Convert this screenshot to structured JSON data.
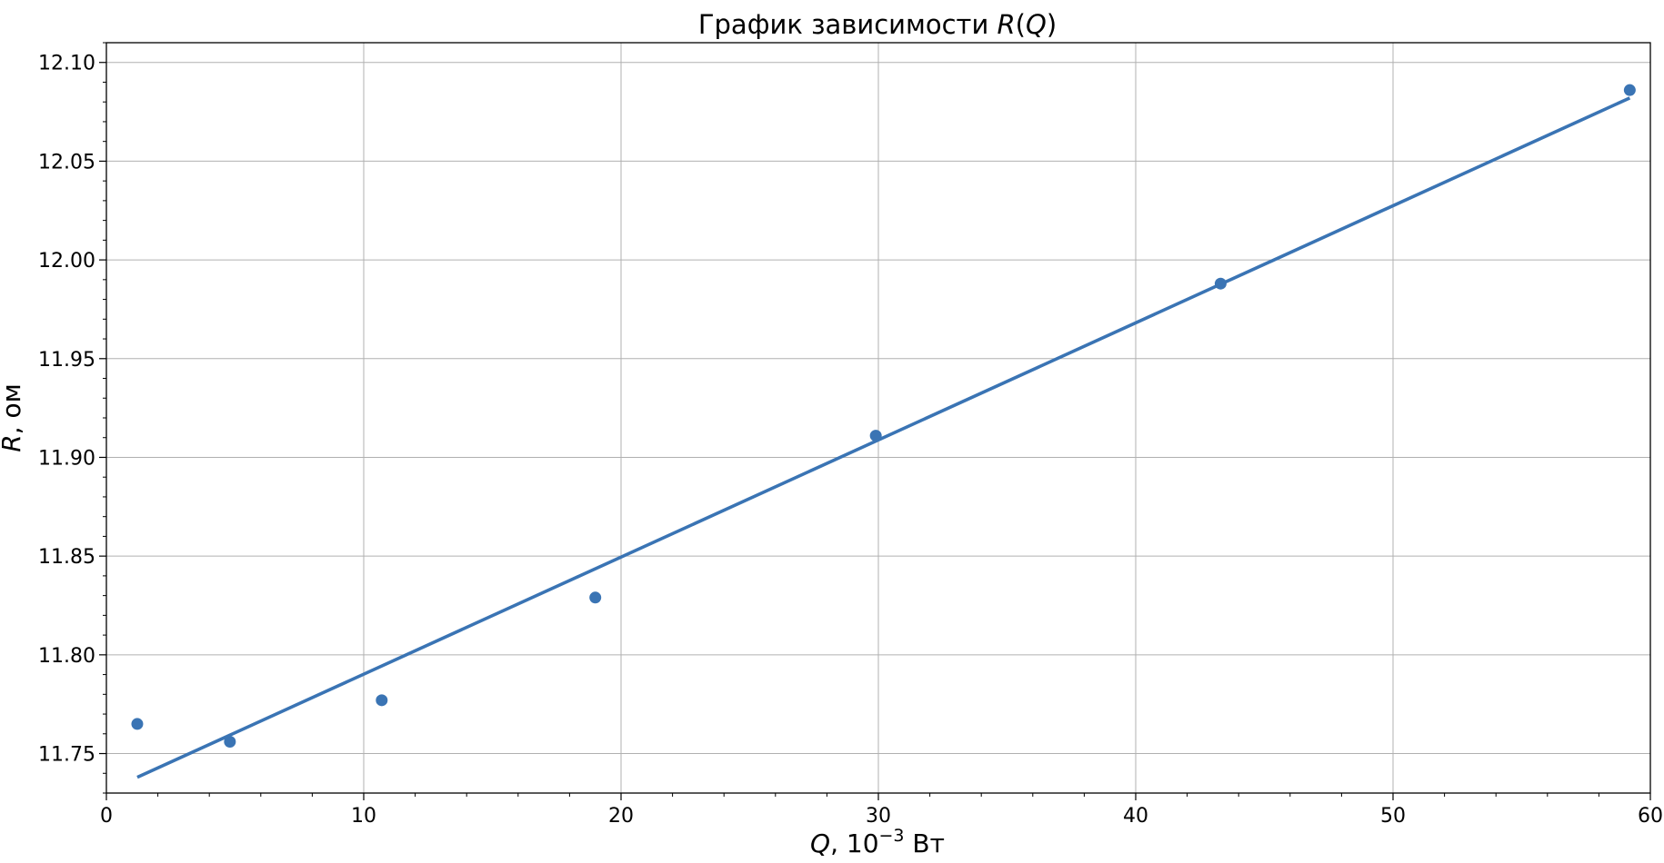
{
  "chart_data": {
    "type": "scatter",
    "title": {
      "prefix": "График зависимости ",
      "symbol": "R",
      "open": "(",
      "arg": "Q",
      "close": ")"
    },
    "xlabel": {
      "symbol": "Q",
      "text_before_exp": ", 10",
      "exponent": "−3",
      "unit": " Вт"
    },
    "ylabel": {
      "symbol": "R",
      "text": ", ом"
    },
    "xlim": [
      0,
      60
    ],
    "ylim": [
      11.73,
      12.11
    ],
    "x_ticks": [
      0,
      10,
      20,
      30,
      40,
      50,
      60
    ],
    "x_tick_labels": [
      "0",
      "10",
      "20",
      "30",
      "40",
      "50",
      "60"
    ],
    "y_ticks": [
      11.75,
      11.8,
      11.85,
      11.9,
      11.95,
      12.0,
      12.05,
      12.1
    ],
    "y_tick_labels": [
      "11.75",
      "11.80",
      "11.85",
      "11.90",
      "11.95",
      "12.00",
      "12.05",
      "12.10"
    ],
    "x_minor_step": 2,
    "y_minor_step": 0.01,
    "grid": true,
    "color": "#3a74b4",
    "series": [
      {
        "kind": "points",
        "x": [
          1.2,
          4.8,
          10.7,
          19.0,
          29.9,
          43.3,
          59.2
        ],
        "y": [
          11.765,
          11.756,
          11.777,
          11.829,
          11.911,
          11.988,
          12.086
        ]
      },
      {
        "kind": "fit-line",
        "x": [
          1.2,
          59.2
        ],
        "y": [
          11.738,
          12.082
        ]
      }
    ]
  }
}
